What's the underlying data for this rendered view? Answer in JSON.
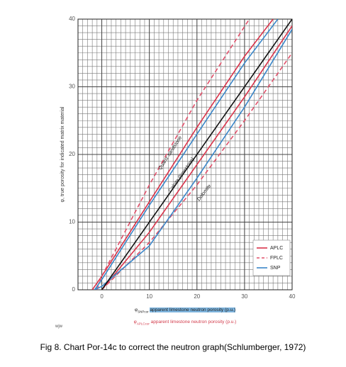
{
  "chart_data": {
    "type": "line",
    "ylabel": "φ, true porosity for indicated matrix material",
    "xlabel_snp": {
      "symbol": "φ",
      "sub": "SNPcor",
      "text": "apparent limestone neutron porosity (p.u.)"
    },
    "xlabel_aplc": {
      "symbol": "φ",
      "sub": "APLCcor",
      "text": "apparent limestone neutron porosity (p.u.)"
    },
    "caption": "Fig 8. Chart Por-14c to correct the neutron graph(Schlumberger, 1972)",
    "watermark": "wjw",
    "xlim": [
      -5,
      40
    ],
    "ylim": [
      0,
      40
    ],
    "xticks": [
      0,
      10,
      20,
      30,
      40
    ],
    "yticks": [
      0,
      10,
      20,
      30,
      40
    ],
    "grid": true,
    "grid_step": 1,
    "legend": "lower right",
    "annotations": [
      "Quartz sandstone",
      "Calcite (limestone)",
      "Dolomite"
    ],
    "reference_line": {
      "color": "#111111",
      "x": [
        0,
        40
      ],
      "values": [
        0,
        40
      ]
    },
    "series": [
      {
        "name": "APLC",
        "color": "#d9334a",
        "dashed": false,
        "curves": [
          {
            "x": [
              -2,
              0,
              10,
              20,
              30,
              36
            ],
            "values": [
              0,
              2,
              13,
              24,
              34.5,
              40
            ]
          },
          {
            "x": [
              0,
              10,
              20,
              30,
              40
            ],
            "values": [
              0,
              8.5,
              18.5,
              28.5,
              39
            ]
          }
        ]
      },
      {
        "name": "FPLC",
        "color": "#e0506a",
        "dashed": true,
        "curves": [
          {
            "x": [
              -1,
              0,
              10,
              20,
              31
            ],
            "values": [
              0,
              2,
              15.5,
              28,
              40
            ]
          },
          {
            "x": [
              0,
              10,
              20,
              30,
              40
            ],
            "values": [
              0,
              7,
              15.5,
              25,
              35
            ]
          }
        ]
      },
      {
        "name": "SNP",
        "color": "#3a86c8",
        "dashed": false,
        "curves": [
          {
            "x": [
              -1.5,
              0,
              10,
              20,
              30,
              37
            ],
            "values": [
              0,
              1.5,
              12.5,
              23,
              33.5,
              40
            ]
          },
          {
            "x": [
              -1.5,
              0,
              10,
              20,
              30,
              40
            ],
            "values": [
              0,
              0.5,
              6.5,
              16.5,
              27,
              38.5
            ]
          }
        ]
      }
    ]
  }
}
